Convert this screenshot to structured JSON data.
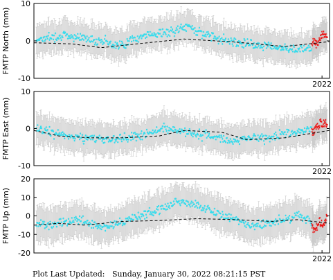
{
  "footer": {
    "label": "Plot Last Updated:",
    "timestamp": "Sunday, January 30, 2022 08:21:15 PST"
  },
  "colors": {
    "normal_points": "#33ddee",
    "recent_points": "#ee1111",
    "error_bars": "#c8c8c8",
    "trend_line": "#000000"
  },
  "chart_data": [
    {
      "type": "scatter",
      "ylabel": "FMTP North (mm)",
      "ylim": [
        -10,
        10
      ],
      "yticks": [
        -10,
        0,
        10
      ],
      "xlim": [
        2010.5,
        2022.3
      ],
      "xticks": [
        2022
      ],
      "xtick_labels": [
        "2022"
      ],
      "grid": false,
      "error_bar_mm": 4,
      "trend": {
        "x": [
          2010.5,
          2012.0,
          2013.2,
          2014.6,
          2016.5,
          2018.5,
          2020.5,
          2022.3
        ],
        "y": [
          -0.5,
          -0.8,
          -1.8,
          -0.8,
          0.5,
          -0.3,
          -1.5,
          -0.2
        ]
      },
      "series": [
        {
          "x_range": [
            2010.6,
            2021.6
          ],
          "values": [
            0.5,
            1.0,
            1.5,
            1.0,
            0.5,
            0.0,
            -1.5,
            0.5,
            1.5,
            2.0,
            2.5,
            4.0,
            2.0,
            1.0,
            0.0,
            -0.5,
            -1.0,
            -1.5,
            -2.0,
            -2.5,
            -1.5
          ]
        },
        {
          "x_range": [
            2021.6,
            2022.2
          ],
          "values": [
            -1.0,
            0.0,
            -0.5,
            1.0,
            2.0,
            0.5
          ]
        }
      ]
    },
    {
      "type": "scatter",
      "ylabel": "FMTP East (mm)",
      "ylim": [
        -10,
        10
      ],
      "yticks": [
        -10,
        0,
        10
      ],
      "xlim": [
        2010.5,
        2022.3
      ],
      "xticks": [
        2022
      ],
      "xtick_labels": [
        "2022"
      ],
      "grid": false,
      "error_bar_mm": 4,
      "trend": {
        "x": [
          2010.5,
          2011.5,
          2012.8,
          2014.0,
          2015.5,
          2016.5,
          2018.0,
          2019.0,
          2020.5,
          2022.3
        ],
        "y": [
          -0.5,
          -2.0,
          -2.5,
          -2.5,
          -2.0,
          -0.5,
          -1.0,
          -3.0,
          -2.5,
          -0.5
        ]
      },
      "series": [
        {
          "x_range": [
            2010.6,
            2021.6
          ],
          "values": [
            0.0,
            -1.0,
            -2.0,
            -2.5,
            -2.5,
            -3.0,
            -2.5,
            -2.0,
            -1.0,
            0.0,
            -0.5,
            -1.5,
            -2.0,
            -3.0,
            -3.0,
            -2.5,
            -2.5,
            -1.5,
            -1.0,
            0.0
          ]
        },
        {
          "x_range": [
            2021.6,
            2022.2
          ],
          "values": [
            -1.0,
            0.0,
            1.0,
            2.0,
            1.5
          ]
        }
      ]
    },
    {
      "type": "scatter",
      "ylabel": "FMTP Up (mm)",
      "ylim": [
        -20,
        20
      ],
      "yticks": [
        -20,
        -10,
        0,
        10,
        20
      ],
      "xlim": [
        2010.5,
        2022.3
      ],
      "xticks": [
        2022
      ],
      "xtick_labels": [
        "2022"
      ],
      "grid": false,
      "error_bar_mm": 9,
      "trend": {
        "x": [
          2010.5,
          2011.5,
          2012.5,
          2014.0,
          2015.5,
          2017.0,
          2018.5,
          2020.0,
          2021.0,
          2022.3
        ],
        "y": [
          -5.0,
          -4.0,
          -5.0,
          -3.0,
          -2.5,
          -1.5,
          -2.0,
          -3.0,
          -2.0,
          -4.0
        ]
      },
      "series": [
        {
          "x_range": [
            2010.6,
            2021.6
          ],
          "values": [
            -4.0,
            -5.0,
            -3.0,
            -2.0,
            -5.0,
            -6.0,
            -3.0,
            0.0,
            2.0,
            5.0,
            8.0,
            6.0,
            3.0,
            0.0,
            -3.0,
            -5.0,
            -4.0,
            -2.0,
            0.0,
            -3.0
          ]
        },
        {
          "x_range": [
            2021.6,
            2022.2
          ],
          "values": [
            -5.0,
            -8.0,
            -3.0,
            -6.0,
            0.0
          ]
        }
      ]
    }
  ]
}
